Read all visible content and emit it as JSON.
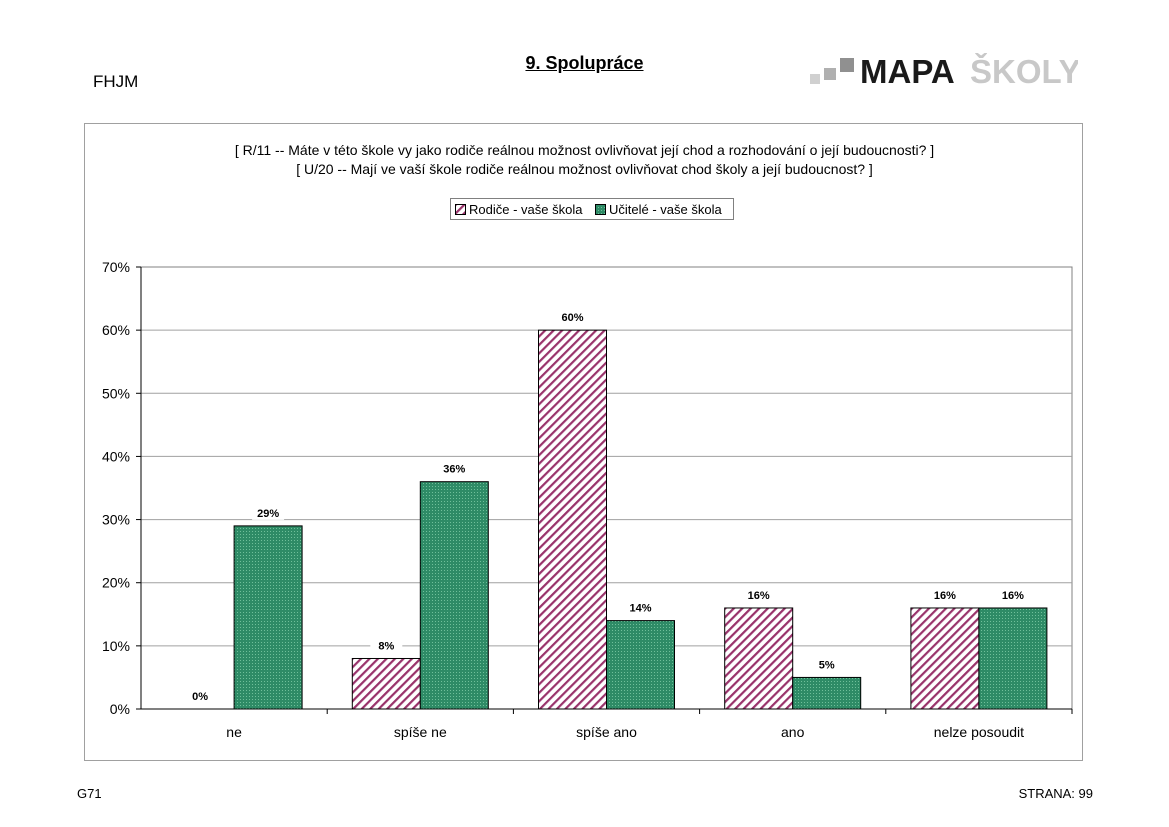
{
  "header": {
    "school_code": "FHJM",
    "page_title": "9. Spolupráce",
    "logo": {
      "text_main": "MAPA",
      "text_sub": "ŠKOLY"
    }
  },
  "questions": {
    "line1": "[ R/11 --  Máte v této škole vy jako rodiče reálnou možnost ovlivňovat její chod a rozhodování o její budoucnosti? ]",
    "line2": "[ U/20 --   Mají ve vaší škole rodiče reálnou možnost ovlivňovat chod školy a její budoucnost? ]"
  },
  "footer": {
    "left": "G71",
    "right": "STRANA: 99"
  },
  "chart_data": {
    "type": "bar",
    "categories": [
      "ne",
      "spíše ne",
      "spíše ano",
      "ano",
      "nelze posoudit"
    ],
    "series": [
      {
        "name": "Rodiče - vaše škola",
        "values": [
          0,
          8,
          60,
          16,
          16
        ],
        "labels": [
          "0%",
          "8%",
          "60%",
          "16%",
          "16%"
        ],
        "color": "#99336b",
        "pattern": "diagonal-hatch"
      },
      {
        "name": "Učitelé - vaše škola",
        "values": [
          29,
          36,
          14,
          5,
          16
        ],
        "labels": [
          "29%",
          "36%",
          "14%",
          "5%",
          "16%"
        ],
        "color": "#2e8b66",
        "pattern": "dotted"
      }
    ],
    "yticks": [
      "0%",
      "10%",
      "20%",
      "30%",
      "40%",
      "50%",
      "60%",
      "70%"
    ],
    "ylim": [
      0,
      70
    ],
    "grid": true,
    "legend": "top-center"
  }
}
